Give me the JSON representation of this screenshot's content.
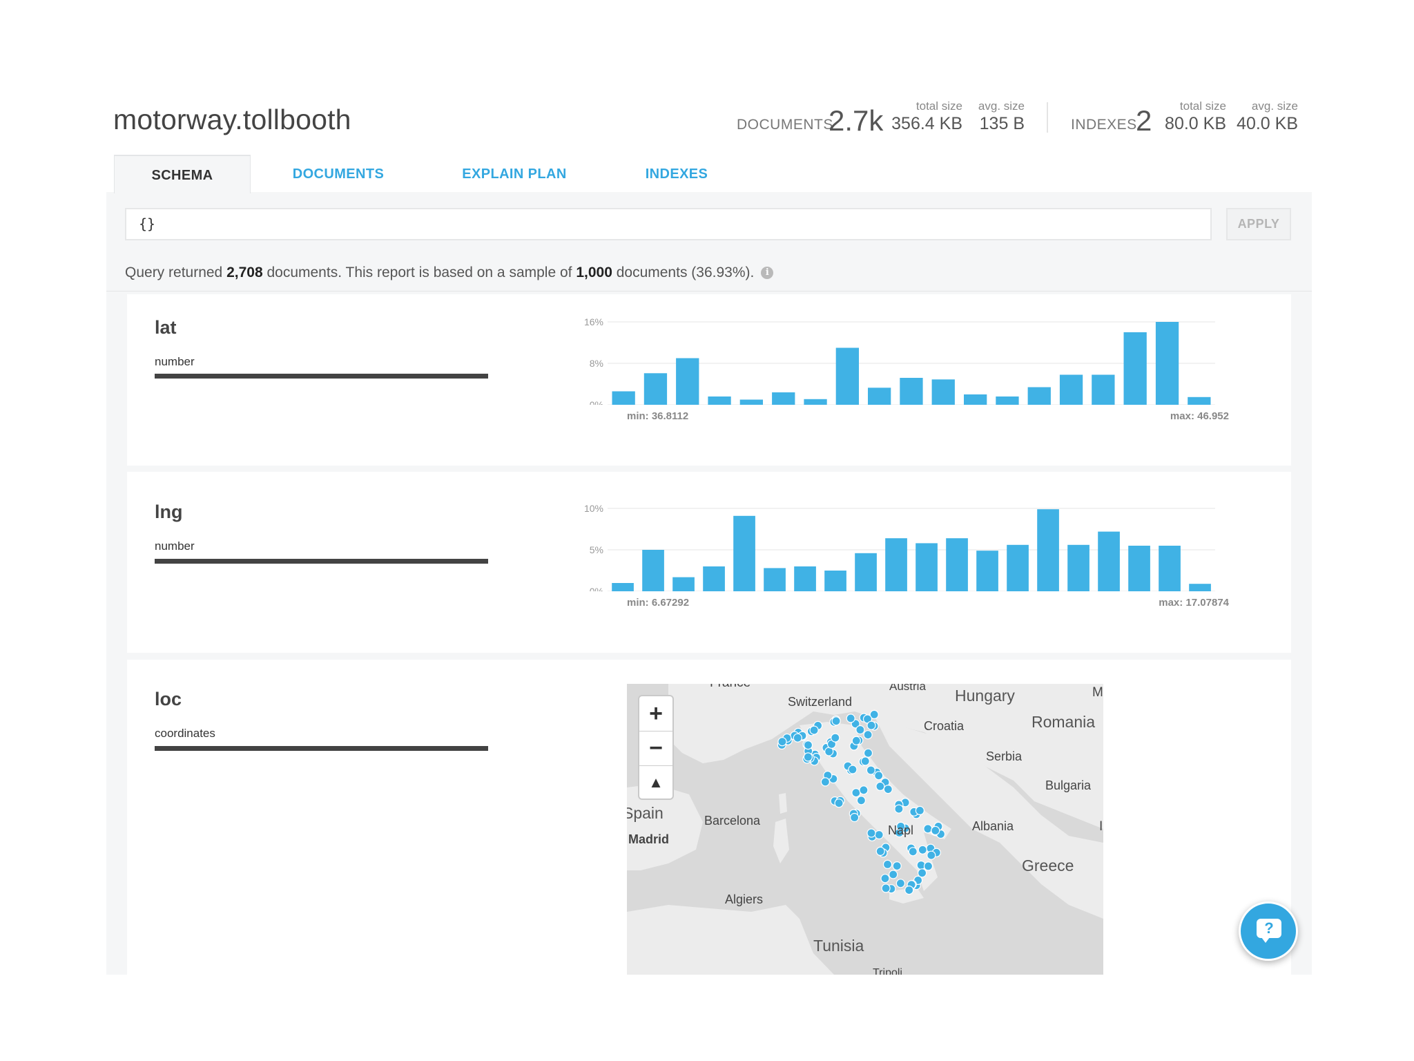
{
  "header": {
    "namespace": "motorway.tollbooth",
    "documents": {
      "label": "DOCUMENTS",
      "count": "2.7k",
      "total_size_caption": "total size",
      "total_size": "356.4 KB",
      "avg_size_caption": "avg. size",
      "avg_size": "135 B"
    },
    "indexes": {
      "label": "INDEXES",
      "count": "2",
      "total_size_caption": "total size",
      "total_size": "80.0 KB",
      "avg_size_caption": "avg. size",
      "avg_size": "40.0 KB"
    }
  },
  "tabs": [
    {
      "label": "SCHEMA",
      "active": true
    },
    {
      "label": "DOCUMENTS",
      "active": false
    },
    {
      "label": "EXPLAIN PLAN",
      "active": false
    },
    {
      "label": "INDEXES",
      "active": false
    }
  ],
  "query": {
    "value": "{}",
    "apply_label": "APPLY"
  },
  "summary": {
    "prefix": "Query returned ",
    "returned": "2,708",
    "middle": " documents. This report is based on a sample of ",
    "sampled": "1,000",
    "suffix": " documents (36.93%).",
    "info_icon": "info-icon"
  },
  "fields": [
    {
      "name": "lat",
      "type": "number"
    },
    {
      "name": "lng",
      "type": "number"
    },
    {
      "name": "loc",
      "type": "coordinates"
    }
  ],
  "chart_data": [
    {
      "type": "bar",
      "field": "lat",
      "ylim": [
        0,
        16
      ],
      "y_ticks": [
        "16%",
        "8%",
        "0%"
      ],
      "values": [
        2.6,
        6.1,
        9.0,
        1.6,
        1.0,
        2.4,
        1.1,
        11.0,
        3.3,
        5.2,
        4.9,
        2.0,
        1.6,
        3.4,
        5.8,
        5.8,
        14.0,
        16.0,
        1.5
      ],
      "min_label": "min: 36.8112",
      "max_label": "max: 46.952",
      "grid": true,
      "color": "#40b2e5"
    },
    {
      "type": "bar",
      "field": "lng",
      "ylim": [
        0,
        10
      ],
      "y_ticks": [
        "10%",
        "5%",
        "0%"
      ],
      "values": [
        1.0,
        5.0,
        1.7,
        3.0,
        9.1,
        2.8,
        3.0,
        2.5,
        4.6,
        6.4,
        5.8,
        6.4,
        4.9,
        5.6,
        9.9,
        5.6,
        7.2,
        5.5,
        5.5,
        0.9
      ],
      "min_label": "min: 6.67292",
      "max_label": "max: 17.07874",
      "grid": true,
      "color": "#40b2e5"
    }
  ],
  "map": {
    "labels": [
      "France",
      "Austria",
      "Hungary",
      "M",
      "Switzerland",
      "Croatia",
      "Romania",
      "Serbia",
      "Bulgaria",
      "Spain",
      "Barcelona",
      "Madrid",
      "Napl",
      "Albania",
      "I",
      "Greece",
      "Algiers",
      "Tunisia",
      "Tripoli"
    ],
    "zoom_in": "+",
    "zoom_out": "−",
    "north": "▲",
    "point_color": "#40b2e5"
  },
  "help": {
    "label": "?",
    "color": "#33a7e0"
  }
}
